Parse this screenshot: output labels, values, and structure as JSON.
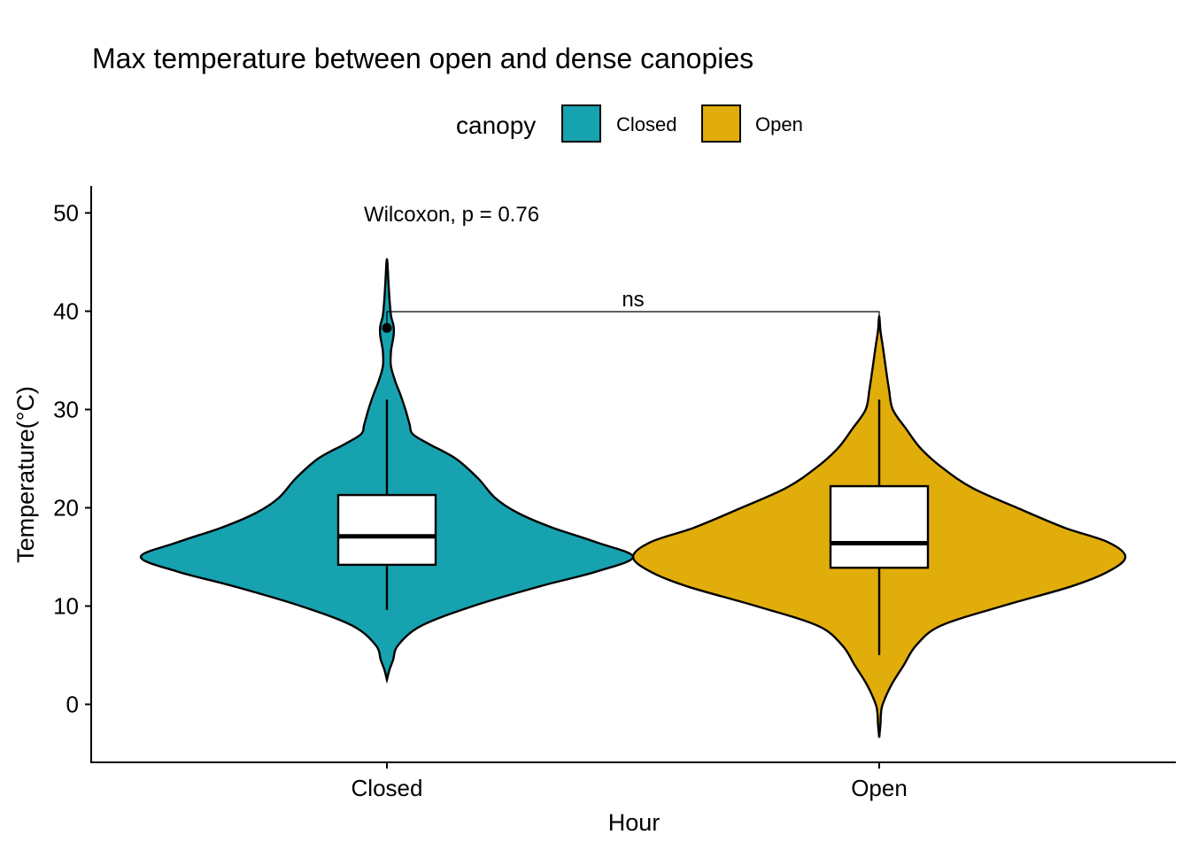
{
  "chart_data": {
    "type": "violin",
    "title": "Max temperature between open and dense canopies",
    "xlabel": "Hour",
    "ylabel": "Temperature(°C)",
    "ylim": [
      -6,
      52
    ],
    "yticks": [
      0,
      10,
      20,
      30,
      40,
      50
    ],
    "categories": [
      "Closed",
      "Open"
    ],
    "legend": {
      "title": "canopy",
      "position": "top",
      "entries": [
        {
          "label": "Closed",
          "color": "#17A2B0"
        },
        {
          "label": "Open",
          "color": "#E1AD0B"
        }
      ]
    },
    "series": [
      {
        "category": "Closed",
        "color": "#17A2B0",
        "violin_range": [
          2.5,
          45.3
        ],
        "box": {
          "q1": 14.2,
          "median": 17.1,
          "q3": 21.3,
          "whisker_low": 9.6,
          "whisker_high": 31.0
        },
        "outliers": [
          38.3
        ],
        "density_profile": [
          [
            2.5,
            0.0
          ],
          [
            3.5,
            0.01
          ],
          [
            4.5,
            0.025
          ],
          [
            6,
            0.045
          ],
          [
            8,
            0.14
          ],
          [
            10,
            0.35
          ],
          [
            12,
            0.62
          ],
          [
            13.5,
            0.85
          ],
          [
            15,
            1.0
          ],
          [
            16.5,
            0.85
          ],
          [
            18,
            0.67
          ],
          [
            19.5,
            0.53
          ],
          [
            21,
            0.44
          ],
          [
            23,
            0.37
          ],
          [
            25,
            0.28
          ],
          [
            26.5,
            0.17
          ],
          [
            27.5,
            0.105
          ],
          [
            28.5,
            0.092
          ],
          [
            30,
            0.075
          ],
          [
            31.5,
            0.055
          ],
          [
            33,
            0.032
          ],
          [
            34.5,
            0.016
          ],
          [
            36,
            0.017
          ],
          [
            37.5,
            0.027
          ],
          [
            38.5,
            0.027
          ],
          [
            39.5,
            0.017
          ],
          [
            41,
            0.011
          ],
          [
            43,
            0.006
          ],
          [
            45.3,
            0.0
          ]
        ]
      },
      {
        "category": "Open",
        "color": "#E1AD0B",
        "violin_range": [
          -3.4,
          39.5
        ],
        "box": {
          "q1": 13.9,
          "median": 16.4,
          "q3": 22.2,
          "whisker_low": 5.0,
          "whisker_high": 31.0
        },
        "outliers": [],
        "density_profile": [
          [
            -3.4,
            0.0
          ],
          [
            -2,
            0.005
          ],
          [
            -1,
            0.007
          ],
          [
            0,
            0.014
          ],
          [
            2,
            0.05
          ],
          [
            4,
            0.1
          ],
          [
            6,
            0.15
          ],
          [
            8,
            0.25
          ],
          [
            10,
            0.5
          ],
          [
            12,
            0.78
          ],
          [
            13.5,
            0.93
          ],
          [
            15,
            1.0
          ],
          [
            16.5,
            0.93
          ],
          [
            18,
            0.75
          ],
          [
            20,
            0.56
          ],
          [
            22,
            0.38
          ],
          [
            24,
            0.26
          ],
          [
            26,
            0.17
          ],
          [
            28,
            0.11
          ],
          [
            30,
            0.055
          ],
          [
            32,
            0.04
          ],
          [
            34,
            0.028
          ],
          [
            36,
            0.017
          ],
          [
            38,
            0.005
          ],
          [
            39.5,
            0.0
          ]
        ]
      }
    ],
    "annotations": {
      "global_test": "Wilcoxon, p = 0.76",
      "bracket_label": "ns",
      "bracket_y": 40
    }
  }
}
